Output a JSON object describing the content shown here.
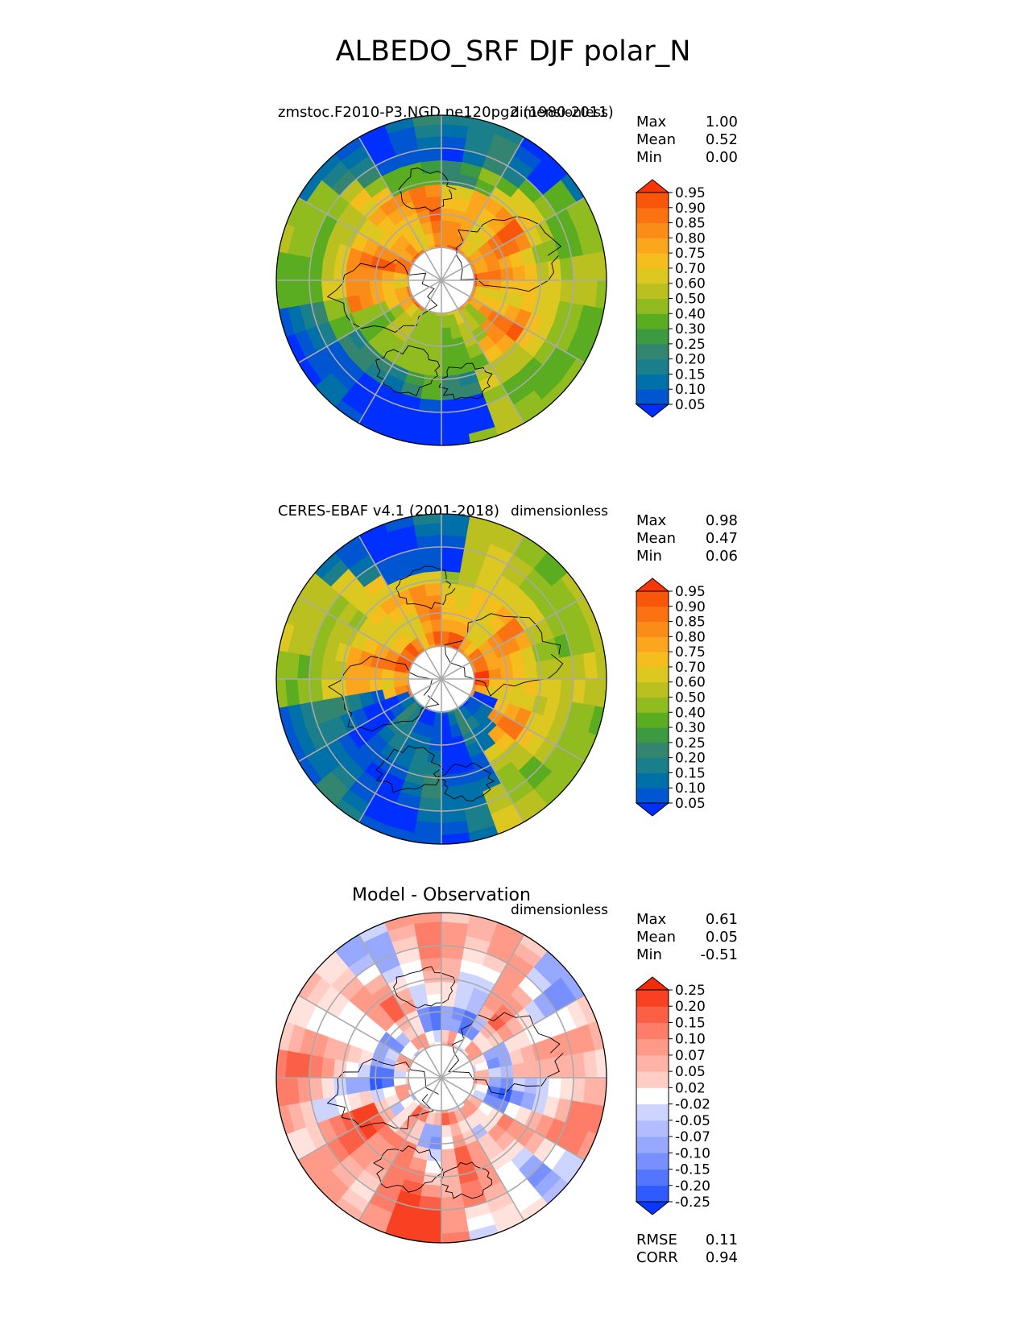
{
  "figure": {
    "title": "ALBEDO_SRF DJF polar_N"
  },
  "colors": {
    "albedo_scale": [
      "#0030ff",
      "#0055d0",
      "#0070a8",
      "#1a7f8a",
      "#338570",
      "#3c9a40",
      "#5aad20",
      "#90bc20",
      "#b9c020",
      "#dcc820",
      "#f5be1e",
      "#fba61c",
      "#fb8c18",
      "#fa7212",
      "#f9560c",
      "#f93706",
      "#fb2400"
    ],
    "diff_scale": [
      "#0a37ff",
      "#2e5bff",
      "#5476ff",
      "#7890ff",
      "#97a8ff",
      "#b2bcff",
      "#cdd4ff",
      "#e4e8ff",
      "#ffffff",
      "#ffe2dc",
      "#ffcdc4",
      "#ffb3a6",
      "#ff9a88",
      "#fe7d68",
      "#fb5f45",
      "#f84023",
      "#f52a0a"
    ],
    "land_outline": "#000000",
    "grid": "#aaaaaa"
  },
  "chart_data": [
    {
      "type": "heatmap",
      "projection": "north-polar-stereographic",
      "title": "zmstoc.F2010-P3.NGD.ne120pg2 (1980-2011)",
      "units": "dimensionless",
      "stats": [
        {
          "label": "Max",
          "value": "1.00"
        },
        {
          "label": "Mean",
          "value": "0.52"
        },
        {
          "label": "Min",
          "value": "0.00"
        }
      ],
      "colorbar": {
        "levels": [
          "0.05",
          "0.10",
          "0.15",
          "0.20",
          "0.25",
          "0.30",
          "0.40",
          "0.50",
          "0.60",
          "0.70",
          "0.75",
          "0.80",
          "0.85",
          "0.90",
          "0.95"
        ],
        "extend": "both"
      },
      "grid": true,
      "land_outline": true
    },
    {
      "type": "heatmap",
      "projection": "north-polar-stereographic",
      "title": "CERES-EBAF v4.1 (2001-2018)",
      "units": "dimensionless",
      "stats": [
        {
          "label": "Max",
          "value": "0.98"
        },
        {
          "label": "Mean",
          "value": "0.47"
        },
        {
          "label": "Min",
          "value": "0.06"
        }
      ],
      "colorbar": {
        "levels": [
          "0.05",
          "0.10",
          "0.15",
          "0.20",
          "0.25",
          "0.30",
          "0.40",
          "0.50",
          "0.60",
          "0.70",
          "0.75",
          "0.80",
          "0.85",
          "0.90",
          "0.95"
        ],
        "extend": "both"
      },
      "grid": true,
      "land_outline": true
    },
    {
      "type": "heatmap",
      "projection": "north-polar-stereographic",
      "title": "Model - Observation",
      "units": "dimensionless",
      "stats": [
        {
          "label": "Max",
          "value": "0.61"
        },
        {
          "label": "Mean",
          "value": "0.05"
        },
        {
          "label": "Min",
          "value": "-0.51"
        }
      ],
      "extra_stats": [
        {
          "label": "RMSE",
          "value": "0.11"
        },
        {
          "label": "CORR",
          "value": "0.94"
        }
      ],
      "colorbar": {
        "levels": [
          "-0.25",
          "-0.20",
          "-0.15",
          "-0.10",
          "-0.07",
          "-0.05",
          "-0.02",
          "0.02",
          "0.05",
          "0.07",
          "0.10",
          "0.15",
          "0.20",
          "0.25"
        ],
        "extend": "both"
      },
      "grid": true,
      "land_outline": true
    }
  ]
}
